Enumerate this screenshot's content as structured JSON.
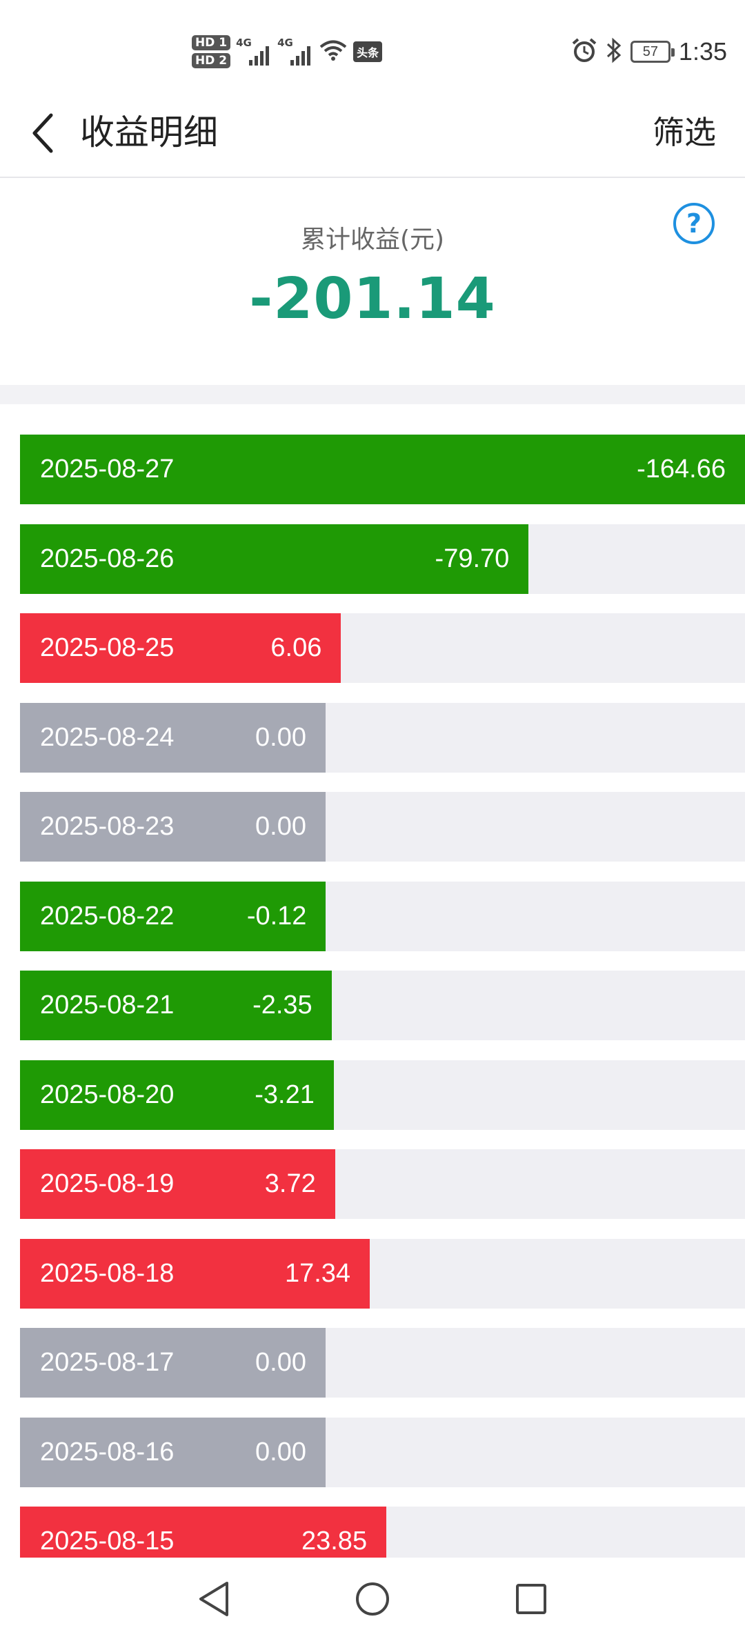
{
  "status_bar": {
    "hd1": "HD 1",
    "hd2": "HD 2",
    "signal1_label": "4G",
    "signal2_label": "4G",
    "toutiao_badge": "头条",
    "battery": "57",
    "time": "1:35"
  },
  "header": {
    "title": "收益明细",
    "filter_label": "筛选"
  },
  "summary": {
    "label": "累计收益(元)",
    "value": "-201.14",
    "help_glyph": "?"
  },
  "colors": {
    "loss": "#1f9a05",
    "gain": "#f23140",
    "zero": "#a6a9b4",
    "summary_value": "#1a9a78",
    "help": "#1e90e0"
  },
  "daily_earnings": [
    {
      "date": "2025-08-27",
      "value": "-164.66",
      "amount": -164.66
    },
    {
      "date": "2025-08-26",
      "value": "-79.70",
      "amount": -79.7
    },
    {
      "date": "2025-08-25",
      "value": "6.06",
      "amount": 6.06
    },
    {
      "date": "2025-08-24",
      "value": "0.00",
      "amount": 0
    },
    {
      "date": "2025-08-23",
      "value": "0.00",
      "amount": 0
    },
    {
      "date": "2025-08-22",
      "value": "-0.12",
      "amount": -0.12
    },
    {
      "date": "2025-08-21",
      "value": "-2.35",
      "amount": -2.35
    },
    {
      "date": "2025-08-20",
      "value": "-3.21",
      "amount": -3.21
    },
    {
      "date": "2025-08-19",
      "value": "3.72",
      "amount": 3.72
    },
    {
      "date": "2025-08-18",
      "value": "17.34",
      "amount": 17.34
    },
    {
      "date": "2025-08-17",
      "value": "0.00",
      "amount": 0
    },
    {
      "date": "2025-08-16",
      "value": "0.00",
      "amount": 0
    },
    {
      "date": "2025-08-15",
      "value": "23.85",
      "amount": 23.85
    }
  ],
  "nav_bar": {
    "back_icon": "triangle-back-icon",
    "home_icon": "circle-home-icon",
    "recents_icon": "square-recents-icon"
  }
}
